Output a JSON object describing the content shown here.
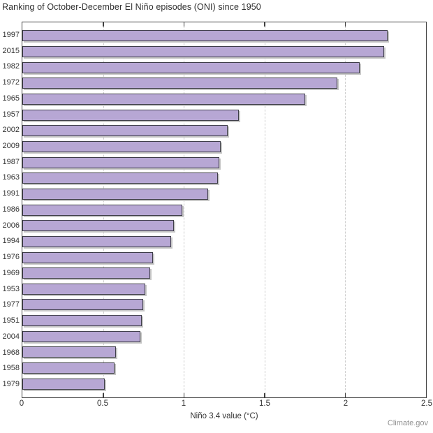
{
  "title": "Ranking of October-December El Niño episodes (ONI) since 1950",
  "watermark": "Climate.gov",
  "chart_data": {
    "type": "bar",
    "orientation": "horizontal",
    "title": "Ranking of October-December El Niño episodes (ONI) since 1950",
    "categories": [
      "1997",
      "2015",
      "1982",
      "1972",
      "1965",
      "1957",
      "2002",
      "2009",
      "1987",
      "1963",
      "1991",
      "1986",
      "2006",
      "1994",
      "1976",
      "1969",
      "1953",
      "1977",
      "1951",
      "2004",
      "1968",
      "1958",
      "1979"
    ],
    "values": [
      2.26,
      2.24,
      2.09,
      1.95,
      1.75,
      1.34,
      1.27,
      1.23,
      1.22,
      1.21,
      1.15,
      0.99,
      0.94,
      0.92,
      0.81,
      0.79,
      0.76,
      0.75,
      0.74,
      0.73,
      0.58,
      0.57,
      0.51
    ],
    "xlabel": "Niño 3.4 value (°C)",
    "xlim": [
      0,
      2.5
    ],
    "xticks": [
      0,
      0.5,
      1,
      1.5,
      2,
      2.5
    ],
    "xtick_labels": [
      "0",
      "0.5",
      "1",
      "1.5",
      "2",
      "2.5"
    ],
    "grid": "vertical-dashed",
    "legend": "none",
    "bar_color": "#b7a7d4",
    "bar_border_color": "#3e3e48",
    "grid_color": "#cdcdcd",
    "source_label": "Climate.gov"
  }
}
